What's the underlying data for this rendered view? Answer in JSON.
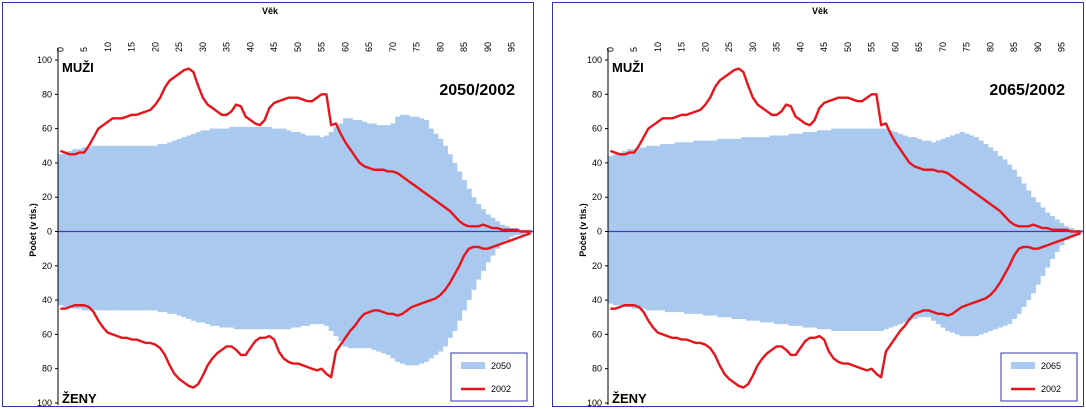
{
  "chart_data": [
    {
      "type": "area",
      "title": "2050/2002",
      "xlabel": "Věk",
      "ylabel": "Počet (v tis.)",
      "label_top": "MUŽI",
      "label_bottom": "ŽENY",
      "x_ticks": [
        0,
        5,
        10,
        15,
        20,
        25,
        30,
        35,
        40,
        45,
        50,
        55,
        60,
        65,
        70,
        75,
        80,
        85,
        90,
        95
      ],
      "y_tick_labels": [
        "100",
        "80",
        "60",
        "40",
        "20",
        "0",
        "20",
        "40",
        "60",
        "80",
        "100"
      ],
      "x_range": [
        0,
        100
      ],
      "y_range": [
        -100,
        100
      ],
      "legend_position": "bottom-right",
      "colors": {
        "projection": "#a9c9ee",
        "base": "#e8141b",
        "zero_line": "#3a3ad0",
        "frame": "#3333aa"
      },
      "series": [
        {
          "name": "2050",
          "kind": "bars",
          "color": "#a9c9ee",
          "men": [
            45,
            46,
            47,
            48,
            48,
            49,
            49,
            50,
            50,
            50,
            50,
            50,
            50,
            50,
            50,
            50,
            50,
            50,
            50,
            50,
            50,
            51,
            51,
            52,
            53,
            54,
            55,
            56,
            57,
            58,
            59,
            59,
            60,
            60,
            60,
            60,
            61,
            61,
            61,
            61,
            61,
            61,
            61,
            61,
            61,
            60,
            60,
            60,
            59,
            58,
            58,
            57,
            56,
            56,
            56,
            55,
            56,
            58,
            61,
            63,
            66,
            66,
            65,
            65,
            64,
            63,
            63,
            62,
            62,
            62,
            63,
            67,
            68,
            68,
            67,
            67,
            66,
            65,
            60,
            57,
            54,
            50,
            45,
            40,
            35,
            30,
            25,
            20,
            16,
            13,
            10,
            8,
            6,
            4,
            3,
            2,
            2,
            1,
            1,
            1
          ],
          "women": [
            43,
            44,
            44,
            45,
            45,
            46,
            46,
            46,
            46,
            46,
            46,
            46,
            46,
            46,
            46,
            46,
            46,
            46,
            46,
            46,
            46,
            47,
            47,
            48,
            48,
            49,
            50,
            51,
            52,
            53,
            53,
            54,
            55,
            55,
            56,
            56,
            56,
            57,
            57,
            57,
            57,
            57,
            57,
            57,
            57,
            57,
            57,
            57,
            57,
            56,
            56,
            55,
            55,
            54,
            54,
            54,
            55,
            58,
            61,
            64,
            67,
            68,
            68,
            68,
            68,
            68,
            69,
            70,
            71,
            72,
            74,
            76,
            77,
            78,
            78,
            78,
            77,
            76,
            74,
            72,
            70,
            67,
            62,
            58,
            52,
            46,
            40,
            34,
            28,
            23,
            18,
            14,
            10,
            7,
            5,
            3,
            2,
            2,
            1,
            1
          ]
        },
        {
          "name": "2002",
          "kind": "line",
          "color": "#e8141b",
          "men": [
            47,
            46,
            45,
            45,
            46,
            46,
            50,
            55,
            60,
            62,
            64,
            66,
            66,
            66,
            67,
            68,
            68,
            69,
            70,
            71,
            74,
            78,
            84,
            88,
            90,
            92,
            94,
            95,
            93,
            85,
            78,
            74,
            72,
            70,
            68,
            68,
            70,
            74,
            73,
            67,
            65,
            63,
            62,
            65,
            72,
            75,
            76,
            77,
            78,
            78,
            78,
            77,
            76,
            76,
            78,
            80,
            80,
            62,
            63,
            57,
            52,
            48,
            44,
            40,
            38,
            37,
            36,
            36,
            36,
            35,
            35,
            34,
            32,
            30,
            28,
            26,
            24,
            22,
            20,
            18,
            16,
            14,
            12,
            9,
            6,
            4,
            3,
            3,
            3,
            4,
            3,
            2,
            2,
            1,
            1,
            1,
            1,
            0,
            0,
            0
          ],
          "women": [
            45,
            45,
            44,
            43,
            43,
            43,
            44,
            47,
            52,
            56,
            59,
            60,
            61,
            62,
            62,
            63,
            63,
            64,
            65,
            65,
            66,
            68,
            72,
            78,
            83,
            86,
            88,
            90,
            91,
            89,
            84,
            78,
            74,
            71,
            69,
            67,
            67,
            69,
            72,
            72,
            68,
            64,
            62,
            62,
            61,
            63,
            70,
            74,
            76,
            77,
            77,
            78,
            79,
            80,
            81,
            80,
            83,
            85,
            70,
            66,
            62,
            58,
            55,
            51,
            48,
            47,
            46,
            46,
            47,
            48,
            48,
            49,
            48,
            46,
            44,
            43,
            42,
            41,
            40,
            39,
            37,
            34,
            30,
            25,
            20,
            14,
            10,
            9,
            9,
            10,
            10,
            9,
            8,
            7,
            6,
            5,
            4,
            3,
            2,
            1
          ]
        }
      ]
    },
    {
      "type": "area",
      "title": "2065/2002",
      "xlabel": "Věk",
      "ylabel": "Počet (v tis.)",
      "label_top": "MUŽI",
      "label_bottom": "ŽENY",
      "x_ticks": [
        0,
        5,
        10,
        15,
        20,
        25,
        30,
        35,
        40,
        45,
        50,
        55,
        60,
        65,
        70,
        75,
        80,
        85,
        90,
        95
      ],
      "y_tick_labels": [
        "100",
        "80",
        "60",
        "40",
        "20",
        "0",
        "20",
        "40",
        "60",
        "80",
        "100"
      ],
      "x_range": [
        0,
        100
      ],
      "y_range": [
        -100,
        100
      ],
      "legend_position": "bottom-right",
      "colors": {
        "projection": "#a9c9ee",
        "base": "#e8141b",
        "zero_line": "#3a3ad0",
        "frame": "#3333aa"
      },
      "series": [
        {
          "name": "2065",
          "kind": "bars",
          "color": "#a9c9ee",
          "men": [
            44,
            45,
            46,
            47,
            48,
            48,
            49,
            49,
            50,
            50,
            50,
            51,
            51,
            51,
            52,
            52,
            52,
            52,
            53,
            53,
            53,
            53,
            53,
            54,
            54,
            54,
            54,
            54,
            55,
            55,
            55,
            55,
            55,
            55,
            56,
            56,
            56,
            56,
            57,
            57,
            57,
            58,
            58,
            58,
            59,
            59,
            59,
            60,
            60,
            60,
            60,
            60,
            60,
            60,
            60,
            60,
            60,
            60,
            60,
            59,
            58,
            57,
            56,
            55,
            55,
            54,
            53,
            53,
            52,
            53,
            54,
            55,
            56,
            57,
            58,
            57,
            56,
            55,
            53,
            51,
            49,
            47,
            44,
            42,
            39,
            36,
            32,
            28,
            24,
            20,
            17,
            14,
            11,
            9,
            7,
            5,
            3,
            2,
            1,
            1
          ],
          "women": [
            42,
            43,
            43,
            44,
            44,
            45,
            45,
            45,
            46,
            46,
            46,
            46,
            47,
            47,
            47,
            47,
            48,
            48,
            48,
            48,
            49,
            49,
            49,
            50,
            50,
            50,
            51,
            51,
            51,
            52,
            52,
            52,
            53,
            53,
            53,
            54,
            54,
            54,
            55,
            55,
            55,
            56,
            56,
            56,
            57,
            57,
            57,
            58,
            58,
            58,
            58,
            58,
            58,
            58,
            58,
            58,
            58,
            58,
            57,
            56,
            55,
            54,
            53,
            52,
            51,
            50,
            50,
            50,
            52,
            54,
            56,
            58,
            59,
            60,
            61,
            61,
            61,
            61,
            60,
            59,
            58,
            57,
            56,
            55,
            54,
            51,
            48,
            44,
            40,
            36,
            31,
            26,
            21,
            16,
            12,
            8,
            5,
            3,
            2,
            1
          ]
        },
        {
          "name": "2002",
          "kind": "line",
          "color": "#e8141b",
          "men": [
            47,
            46,
            45,
            45,
            46,
            46,
            50,
            55,
            60,
            62,
            64,
            66,
            66,
            66,
            67,
            68,
            68,
            69,
            70,
            71,
            74,
            78,
            84,
            88,
            90,
            92,
            94,
            95,
            93,
            85,
            78,
            74,
            72,
            70,
            68,
            68,
            70,
            74,
            73,
            67,
            65,
            63,
            62,
            65,
            72,
            75,
            76,
            77,
            78,
            78,
            78,
            77,
            76,
            76,
            78,
            80,
            80,
            62,
            63,
            57,
            52,
            48,
            44,
            40,
            38,
            37,
            36,
            36,
            36,
            35,
            35,
            34,
            32,
            30,
            28,
            26,
            24,
            22,
            20,
            18,
            16,
            14,
            12,
            9,
            6,
            4,
            3,
            3,
            3,
            4,
            3,
            2,
            2,
            1,
            1,
            1,
            1,
            0,
            0,
            0
          ],
          "women": [
            45,
            45,
            44,
            43,
            43,
            43,
            44,
            47,
            52,
            56,
            59,
            60,
            61,
            62,
            62,
            63,
            63,
            64,
            65,
            65,
            66,
            68,
            72,
            78,
            83,
            86,
            88,
            90,
            91,
            89,
            84,
            78,
            74,
            71,
            69,
            67,
            67,
            69,
            72,
            72,
            68,
            64,
            62,
            62,
            61,
            63,
            70,
            74,
            76,
            77,
            77,
            78,
            79,
            80,
            81,
            80,
            83,
            85,
            70,
            66,
            62,
            58,
            55,
            51,
            48,
            47,
            46,
            46,
            47,
            48,
            48,
            49,
            48,
            46,
            44,
            43,
            42,
            41,
            40,
            39,
            37,
            34,
            30,
            25,
            20,
            14,
            10,
            9,
            9,
            10,
            10,
            9,
            8,
            7,
            6,
            5,
            4,
            3,
            2,
            1
          ]
        }
      ]
    }
  ]
}
